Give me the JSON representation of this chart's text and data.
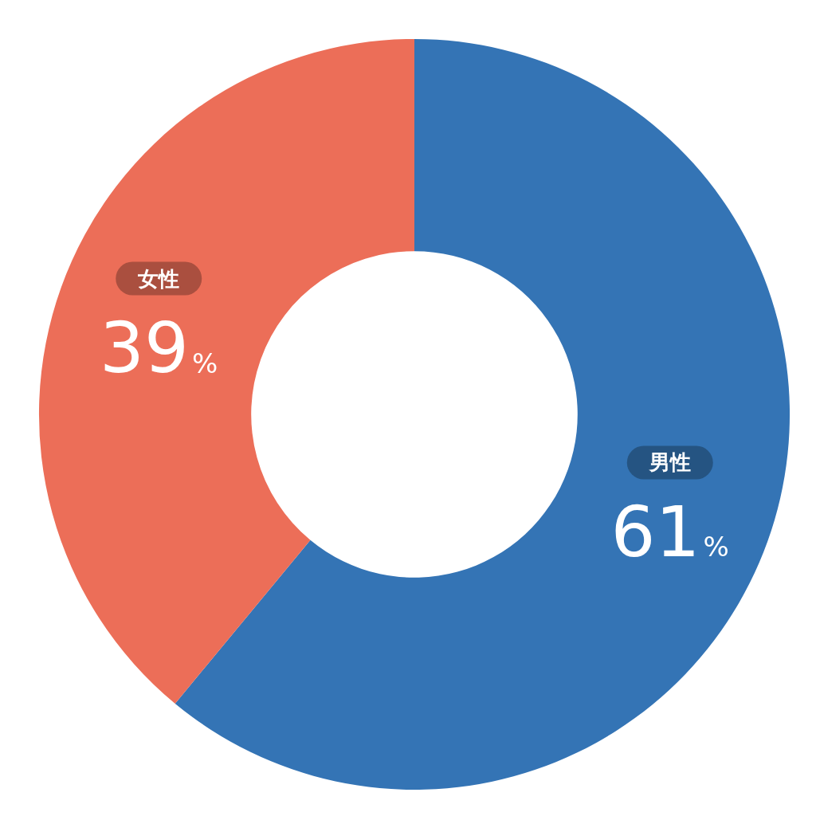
{
  "chart_data": {
    "type": "donut",
    "categories": [
      "男性",
      "女性"
    ],
    "values": [
      61,
      39
    ],
    "colors": [
      "#3474b5",
      "#ec6e58"
    ],
    "value_labels": [
      "61%",
      "39%"
    ]
  }
}
